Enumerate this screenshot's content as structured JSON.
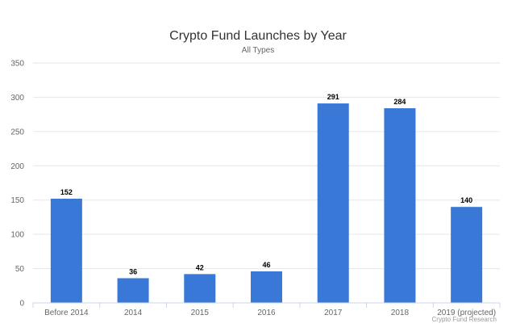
{
  "chart_data": {
    "type": "bar",
    "title": "Crypto Fund Launches by Year",
    "subtitle": "All Types",
    "categories": [
      "Before 2014",
      "2014",
      "2015",
      "2016",
      "2017",
      "2018",
      "2019 (projected)"
    ],
    "values": [
      152,
      36,
      42,
      46,
      291,
      284,
      140
    ],
    "data_labels": [
      "152",
      "36",
      "42",
      "46",
      "291",
      "284",
      "140"
    ],
    "ylim": [
      0,
      350
    ],
    "yticks": [
      0,
      50,
      100,
      150,
      200,
      250,
      300,
      350
    ],
    "xlabel": "",
    "ylabel": "",
    "grid": true,
    "legend": "none",
    "bar_color": "#3a78d8",
    "credit": "Crypto Fund Research"
  }
}
